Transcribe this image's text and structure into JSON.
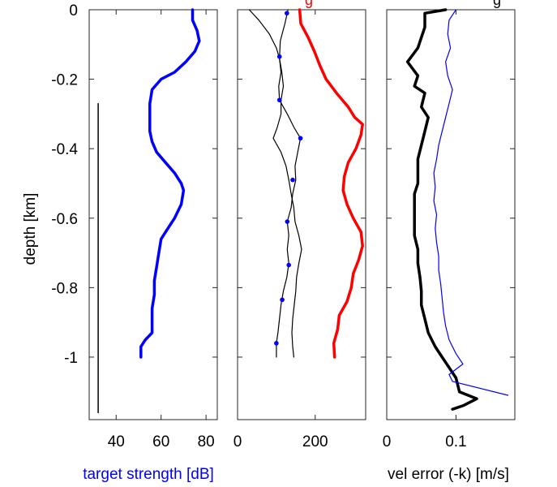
{
  "chart_data": [
    {
      "type": "line",
      "panel": "left",
      "ylabel": "depth [km]",
      "xlabel": "target strength [dB]",
      "xlabel_color": "#0000ff",
      "xlim": [
        28,
        85
      ],
      "ylim": [
        -1.18,
        0
      ],
      "xticks": [
        40,
        60,
        80
      ],
      "yticks": [
        0,
        -0.2,
        -0.4,
        -0.6,
        -0.8,
        -1
      ],
      "grid": false,
      "series": [
        {
          "color": "#0000ff",
          "width": 3.5,
          "points": [
            [
              74,
              0
            ],
            [
              74,
              -0.03
            ],
            [
              76,
              -0.06
            ],
            [
              77,
              -0.09
            ],
            [
              75,
              -0.12
            ],
            [
              71,
              -0.15
            ],
            [
              66,
              -0.18
            ],
            [
              60,
              -0.2
            ],
            [
              56,
              -0.23
            ],
            [
              55,
              -0.27
            ],
            [
              55,
              -0.31
            ],
            [
              55,
              -0.35
            ],
            [
              56,
              -0.38
            ],
            [
              58,
              -0.41
            ],
            [
              62,
              -0.44
            ],
            [
              66,
              -0.47
            ],
            [
              69,
              -0.5
            ],
            [
              70,
              -0.52
            ],
            [
              69,
              -0.56
            ],
            [
              66,
              -0.6
            ],
            [
              63,
              -0.63
            ],
            [
              60,
              -0.66
            ],
            [
              59,
              -0.7
            ],
            [
              58,
              -0.74
            ],
            [
              57,
              -0.78
            ],
            [
              57,
              -0.82
            ],
            [
              56,
              -0.86
            ],
            [
              56,
              -0.9
            ],
            [
              56,
              -0.93
            ],
            [
              53,
              -0.95
            ],
            [
              51,
              -0.97
            ],
            [
              51,
              -1.0
            ]
          ]
        },
        {
          "color": "#000000",
          "width": 1.5,
          "points": [
            [
              32,
              -0.27
            ],
            [
              32,
              -0.4
            ],
            [
              32,
              -0.6
            ],
            [
              32,
              -0.8
            ],
            [
              32,
              -1.0
            ],
            [
              32,
              -1.16
            ]
          ]
        }
      ]
    },
    {
      "type": "line",
      "panel": "middle",
      "xlim": [
        0,
        330
      ],
      "ylim": [
        -1.18,
        0
      ],
      "xticks": [
        0,
        200
      ],
      "grid": false,
      "series": [
        {
          "color": "#ff0000",
          "width": 3.5,
          "points": [
            [
              160,
              0
            ],
            [
              163,
              -0.04
            ],
            [
              182,
              -0.08
            ],
            [
              198,
              -0.12
            ],
            [
              212,
              -0.16
            ],
            [
              228,
              -0.2
            ],
            [
              255,
              -0.24
            ],
            [
              285,
              -0.28
            ],
            [
              302,
              -0.31
            ],
            [
              322,
              -0.33
            ],
            [
              318,
              -0.36
            ],
            [
              305,
              -0.4
            ],
            [
              285,
              -0.44
            ],
            [
              275,
              -0.48
            ],
            [
              272,
              -0.52
            ],
            [
              282,
              -0.56
            ],
            [
              298,
              -0.6
            ],
            [
              318,
              -0.64
            ],
            [
              322,
              -0.68
            ],
            [
              312,
              -0.72
            ],
            [
              298,
              -0.76
            ],
            [
              293,
              -0.8
            ],
            [
              282,
              -0.84
            ],
            [
              262,
              -0.88
            ],
            [
              258,
              -0.92
            ],
            [
              248,
              -0.96
            ],
            [
              250,
              -1.0
            ]
          ]
        },
        {
          "color": "#000000",
          "width": 1.2,
          "points": [
            [
              30,
              0
            ],
            [
              55,
              -0.03
            ],
            [
              82,
              -0.07
            ],
            [
              100,
              -0.11
            ],
            [
              108,
              -0.14
            ],
            [
              112,
              -0.18
            ],
            [
              106,
              -0.22
            ],
            [
              108,
              -0.26
            ],
            [
              128,
              -0.3
            ],
            [
              146,
              -0.34
            ],
            [
              162,
              -0.37
            ],
            [
              155,
              -0.41
            ],
            [
              148,
              -0.45
            ],
            [
              150,
              -0.49
            ],
            [
              142,
              -0.53
            ],
            [
              138,
              -0.57
            ],
            [
              128,
              -0.61
            ],
            [
              132,
              -0.65
            ],
            [
              128,
              -0.69
            ],
            [
              132,
              -0.73
            ],
            [
              127,
              -0.77
            ],
            [
              118,
              -0.81
            ],
            [
              112,
              -0.85
            ],
            [
              108,
              -0.89
            ],
            [
              104,
              -0.93
            ],
            [
              100,
              -0.96
            ],
            [
              100,
              -1.0
            ]
          ]
        },
        {
          "color": "#000000",
          "width": 1.2,
          "points": [
            [
              130,
              0
            ],
            [
              122,
              -0.04
            ],
            [
              110,
              -0.09
            ],
            [
              108,
              -0.14
            ],
            [
              114,
              -0.18
            ],
            [
              118,
              -0.22
            ],
            [
              112,
              -0.26
            ],
            [
              112,
              -0.3
            ],
            [
              102,
              -0.34
            ],
            [
              92,
              -0.37
            ],
            [
              112,
              -0.41
            ],
            [
              125,
              -0.45
            ],
            [
              132,
              -0.49
            ],
            [
              138,
              -0.53
            ],
            [
              145,
              -0.57
            ],
            [
              148,
              -0.61
            ],
            [
              158,
              -0.65
            ],
            [
              165,
              -0.69
            ],
            [
              158,
              -0.73
            ],
            [
              152,
              -0.77
            ],
            [
              150,
              -0.81
            ],
            [
              146,
              -0.85
            ],
            [
              142,
              -0.89
            ],
            [
              140,
              -0.93
            ],
            [
              142,
              -0.97
            ],
            [
              145,
              -1.0
            ]
          ]
        }
      ],
      "markers": {
        "color": "#0000ff",
        "points": [
          [
            127,
            -0.01
          ],
          [
            108,
            -0.135
          ],
          [
            108,
            -0.26
          ],
          [
            162,
            -0.37
          ],
          [
            142,
            -0.49
          ],
          [
            128,
            -0.61
          ],
          [
            132,
            -0.735
          ],
          [
            115,
            -0.835
          ],
          [
            100,
            -0.96
          ]
        ]
      }
    },
    {
      "type": "line",
      "panel": "right",
      "xlabel": "vel error (-k) [m/s]",
      "xlim": [
        0,
        0.185
      ],
      "ylim": [
        -1.18,
        0
      ],
      "xticks": [
        0,
        0.1
      ],
      "xticklabels": [
        "0",
        "0.1"
      ],
      "grid": false,
      "series": [
        {
          "color": "#000000",
          "width": 3.5,
          "points": [
            [
              0.085,
              0
            ],
            [
              0.055,
              -0.01
            ],
            [
              0.055,
              -0.05
            ],
            [
              0.05,
              -0.08
            ],
            [
              0.045,
              -0.11
            ],
            [
              0.03,
              -0.15
            ],
            [
              0.045,
              -0.19
            ],
            [
              0.04,
              -0.22
            ],
            [
              0.055,
              -0.24
            ],
            [
              0.05,
              -0.28
            ],
            [
              0.06,
              -0.31
            ],
            [
              0.055,
              -0.35
            ],
            [
              0.05,
              -0.39
            ],
            [
              0.045,
              -0.43
            ],
            [
              0.045,
              -0.47
            ],
            [
              0.045,
              -0.5
            ],
            [
              0.04,
              -0.53
            ],
            [
              0.04,
              -0.57
            ],
            [
              0.04,
              -0.61
            ],
            [
              0.04,
              -0.65
            ],
            [
              0.045,
              -0.69
            ],
            [
              0.045,
              -0.73
            ],
            [
              0.048,
              -0.77
            ],
            [
              0.05,
              -0.81
            ],
            [
              0.05,
              -0.85
            ],
            [
              0.055,
              -0.89
            ],
            [
              0.06,
              -0.93
            ],
            [
              0.07,
              -0.97
            ],
            [
              0.08,
              -1.0
            ],
            [
              0.09,
              -1.03
            ],
            [
              0.1,
              -1.06
            ],
            [
              0.105,
              -1.1
            ],
            [
              0.13,
              -1.12
            ],
            [
              0.11,
              -1.14
            ],
            [
              0.095,
              -1.15
            ]
          ]
        },
        {
          "color": "#0000ff",
          "width": 1.2,
          "points": [
            [
              0.1,
              0
            ],
            [
              0.09,
              -0.03
            ],
            [
              0.088,
              -0.07
            ],
            [
              0.092,
              -0.11
            ],
            [
              0.085,
              -0.15
            ],
            [
              0.088,
              -0.19
            ],
            [
              0.095,
              -0.23
            ],
            [
              0.09,
              -0.27
            ],
            [
              0.085,
              -0.31
            ],
            [
              0.08,
              -0.35
            ],
            [
              0.075,
              -0.39
            ],
            [
              0.072,
              -0.43
            ],
            [
              0.068,
              -0.47
            ],
            [
              0.07,
              -0.51
            ],
            [
              0.068,
              -0.55
            ],
            [
              0.072,
              -0.59
            ],
            [
              0.07,
              -0.63
            ],
            [
              0.072,
              -0.67
            ],
            [
              0.075,
              -0.71
            ],
            [
              0.075,
              -0.75
            ],
            [
              0.078,
              -0.79
            ],
            [
              0.08,
              -0.83
            ],
            [
              0.082,
              -0.87
            ],
            [
              0.085,
              -0.91
            ],
            [
              0.09,
              -0.95
            ],
            [
              0.1,
              -0.99
            ],
            [
              0.11,
              -1.02
            ],
            [
              0.09,
              -1.05
            ],
            [
              0.095,
              -1.07
            ],
            [
              0.175,
              -1.11
            ]
          ]
        }
      ]
    }
  ],
  "title_fragments": [
    {
      "panel": "middle",
      "text": "g",
      "color": "#ff0000"
    },
    {
      "panel": "right",
      "text": "g",
      "color": "#000000"
    }
  ]
}
